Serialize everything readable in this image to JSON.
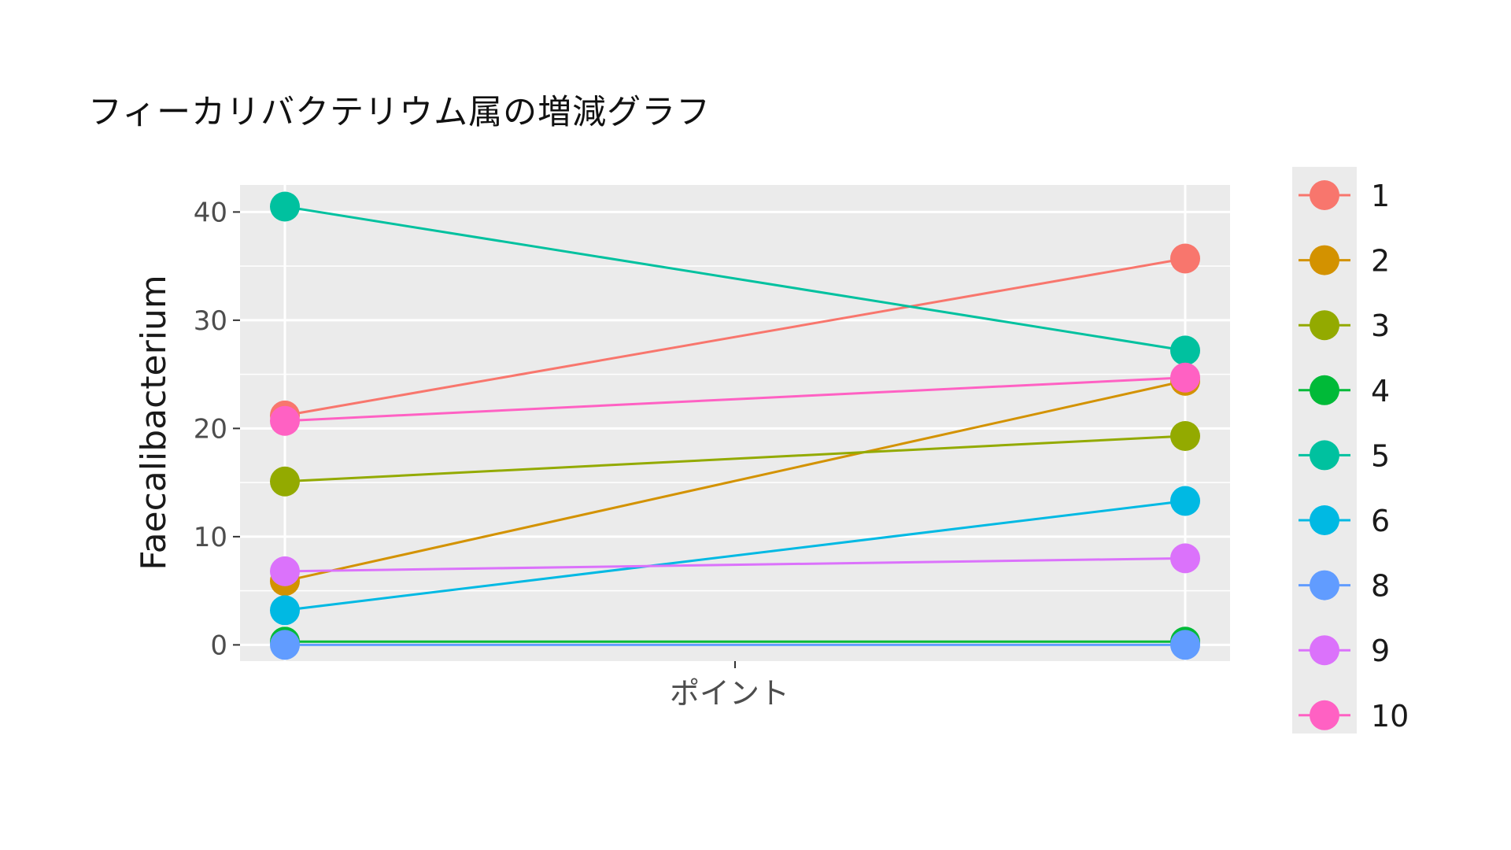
{
  "title": "フィーカリバクテリウム属の増減グラフ",
  "chart_data": {
    "type": "line",
    "title": "フィーカリバクテリウム属の増減グラフ",
    "xlabel": "ポイント",
    "ylabel": "Faecalibacterium",
    "x_tick_label": "ポイント",
    "x": [
      1,
      2
    ],
    "ylim": [
      -1.5,
      42.5
    ],
    "y_ticks": [
      0,
      10,
      20,
      30,
      40
    ],
    "grid": true,
    "legend_position": "right",
    "series": [
      {
        "name": "1",
        "color": "#F8766D",
        "values": [
          21.2,
          35.7
        ]
      },
      {
        "name": "2",
        "color": "#D39200",
        "values": [
          5.9,
          24.4
        ]
      },
      {
        "name": "3",
        "color": "#93AA00",
        "values": [
          15.1,
          19.3
        ]
      },
      {
        "name": "4",
        "color": "#00BA38",
        "values": [
          0.3,
          0.3
        ]
      },
      {
        "name": "5",
        "color": "#00C19F",
        "values": [
          40.5,
          27.2
        ]
      },
      {
        "name": "6",
        "color": "#00B9E3",
        "values": [
          3.2,
          13.3
        ]
      },
      {
        "name": "8",
        "color": "#619CFF",
        "values": [
          0.0,
          0.0
        ]
      },
      {
        "name": "9",
        "color": "#DB72FB",
        "values": [
          6.8,
          8.0
        ]
      },
      {
        "name": "10",
        "color": "#FF61C3",
        "values": [
          20.7,
          24.7
        ]
      }
    ]
  }
}
